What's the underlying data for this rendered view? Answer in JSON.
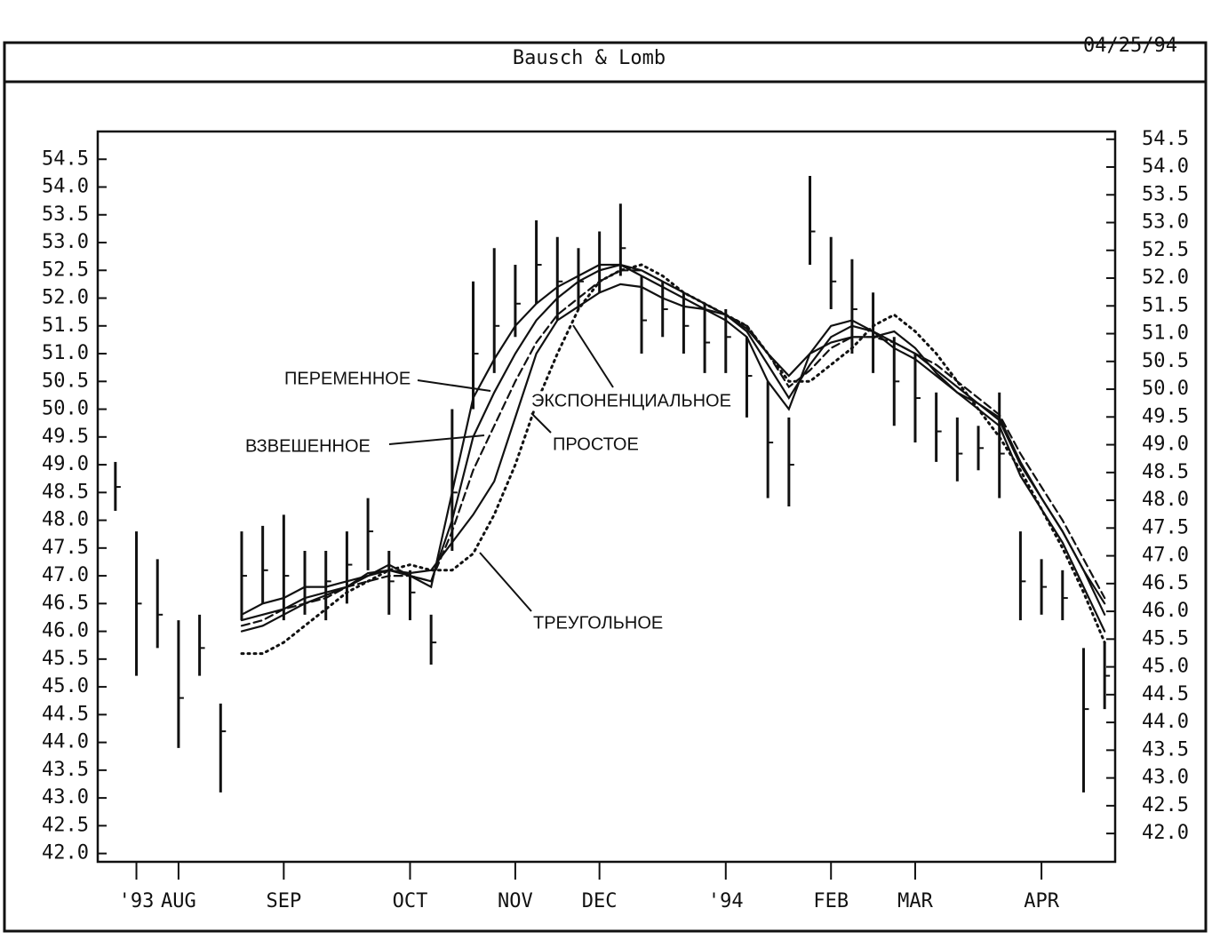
{
  "chart_data": {
    "type": "line",
    "title": "Bausch & Lomb",
    "date": "04/25/94",
    "categories": [
      null,
      "'93",
      null,
      "AUG",
      null,
      null,
      null,
      null,
      "SEP",
      null,
      null,
      null,
      null,
      null,
      "OCT",
      null,
      null,
      null,
      null,
      "NOV",
      null,
      null,
      null,
      "DEC",
      null,
      null,
      null,
      null,
      null,
      "'94",
      null,
      null,
      null,
      null,
      "FEB",
      null,
      null,
      null,
      "MAR",
      null,
      null,
      null,
      null,
      null,
      "APR",
      null,
      null,
      null
    ],
    "price_bars": {
      "high": [
        49.05,
        47.8,
        47.3,
        46.2,
        46.3,
        44.7,
        47.8,
        47.9,
        48.1,
        47.45,
        47.45,
        47.8,
        48.4,
        47.45,
        47.1,
        46.3,
        50.0,
        52.3,
        52.9,
        52.6,
        53.4,
        53.1,
        52.9,
        53.2,
        53.7,
        52.4,
        52.3,
        52.1,
        51.9,
        51.8,
        51.3,
        50.5,
        49.85,
        54.2,
        53.1,
        52.7,
        52.1,
        51.3,
        51.0,
        50.3,
        49.85,
        49.7,
        50.3,
        47.8,
        47.3,
        47.1,
        45.7,
        45.8
      ],
      "low": [
        48.17,
        45.2,
        45.7,
        43.9,
        45.2,
        43.1,
        46.2,
        46.5,
        46.2,
        46.3,
        46.2,
        46.5,
        47.1,
        46.3,
        46.2,
        45.4,
        47.45,
        50.0,
        50.65,
        51.3,
        51.9,
        51.6,
        51.8,
        52.1,
        52.4,
        51.0,
        51.3,
        51.0,
        50.65,
        50.65,
        49.85,
        48.4,
        48.25,
        52.6,
        51.8,
        51.0,
        50.65,
        49.7,
        49.4,
        49.05,
        48.7,
        48.9,
        48.4,
        46.2,
        46.3,
        46.2,
        43.1,
        44.6
      ],
      "close": [
        48.6,
        46.5,
        46.3,
        44.8,
        45.7,
        44.2,
        47.0,
        47.1,
        47.0,
        46.8,
        46.9,
        47.2,
        47.8,
        46.9,
        46.7,
        45.8,
        48.5,
        51.0,
        51.5,
        51.9,
        52.6,
        52.3,
        52.3,
        52.6,
        52.9,
        51.6,
        51.8,
        51.5,
        51.2,
        51.3,
        50.6,
        49.4,
        49.0,
        53.2,
        52.3,
        51.8,
        51.3,
        50.5,
        50.2,
        49.6,
        49.2,
        49.3,
        49.2,
        46.9,
        46.8,
        46.6,
        44.6,
        45.2
      ]
    },
    "series": [
      {
        "name": "ПЕРЕМЕННОЕ",
        "color": "#111111",
        "line_style": "solid",
        "values": [
          null,
          null,
          null,
          null,
          null,
          null,
          46.3,
          46.5,
          46.6,
          46.8,
          46.8,
          46.9,
          47.0,
          47.2,
          47.0,
          46.8,
          48.5,
          50.2,
          50.9,
          51.5,
          51.9,
          52.2,
          52.4,
          52.6,
          52.6,
          52.4,
          52.2,
          52.0,
          51.8,
          51.6,
          51.3,
          50.5,
          50.0,
          51.0,
          51.5,
          51.6,
          51.4,
          51.1,
          50.9,
          50.6,
          50.3,
          50.0,
          49.7,
          48.8,
          48.2,
          47.6,
          46.8,
          46.0
        ]
      },
      {
        "name": "ВЗВЕШЕННОЕ",
        "color": "#111111",
        "line_style": "solid",
        "values": [
          null,
          null,
          null,
          null,
          null,
          null,
          46.2,
          46.3,
          46.4,
          46.6,
          46.7,
          46.8,
          47.0,
          47.1,
          47.0,
          46.9,
          48.0,
          49.5,
          50.3,
          51.0,
          51.6,
          52.0,
          52.3,
          52.5,
          52.6,
          52.5,
          52.3,
          52.1,
          51.9,
          51.7,
          51.4,
          50.8,
          50.2,
          50.8,
          51.3,
          51.5,
          51.4,
          51.2,
          51.0,
          50.7,
          50.4,
          50.1,
          49.8,
          49.0,
          48.4,
          47.8,
          47.1,
          46.3
        ]
      },
      {
        "name": "ЭКСПОНЕНЦИАЛЬНОЕ",
        "color": "#111111",
        "line_style": "dashed",
        "values": [
          null,
          null,
          null,
          null,
          null,
          null,
          46.1,
          46.2,
          46.4,
          46.5,
          46.6,
          46.8,
          46.9,
          47.0,
          47.0,
          46.9,
          47.8,
          48.9,
          49.7,
          50.5,
          51.2,
          51.7,
          52.0,
          52.3,
          52.5,
          52.5,
          52.3,
          52.1,
          51.9,
          51.7,
          51.5,
          51.0,
          50.4,
          50.7,
          51.1,
          51.3,
          51.3,
          51.2,
          51.0,
          50.8,
          50.5,
          50.2,
          49.9,
          49.2,
          48.6,
          48.0,
          47.3,
          46.6
        ]
      },
      {
        "name": "ПРОСТОЕ",
        "color": "#111111",
        "line_style": "solid",
        "values": [
          null,
          null,
          null,
          null,
          null,
          null,
          46.0,
          46.1,
          46.3,
          46.5,
          46.65,
          46.8,
          47.05,
          47.1,
          47.05,
          47.1,
          47.6,
          48.1,
          48.7,
          49.85,
          51.0,
          51.6,
          51.85,
          52.1,
          52.25,
          52.2,
          52.0,
          51.85,
          51.8,
          51.7,
          51.45,
          51.0,
          50.6,
          51.0,
          51.2,
          51.3,
          51.3,
          51.4,
          51.1,
          50.65,
          50.3,
          50.1,
          49.85,
          49.05,
          48.4,
          47.8,
          47.1,
          46.5
        ]
      },
      {
        "name": "ТРЕУГОЛЬНОЕ",
        "color": "#111111",
        "line_style": "dotted",
        "values": [
          null,
          null,
          null,
          null,
          null,
          null,
          45.6,
          45.6,
          45.8,
          46.1,
          46.4,
          46.7,
          46.9,
          47.1,
          47.2,
          47.1,
          47.1,
          47.4,
          48.1,
          49.0,
          50.1,
          51.0,
          51.8,
          52.3,
          52.5,
          52.6,
          52.4,
          52.1,
          51.9,
          51.7,
          51.5,
          51.0,
          50.5,
          50.5,
          50.8,
          51.1,
          51.5,
          51.7,
          51.4,
          51.0,
          50.5,
          50.0,
          49.5,
          48.9,
          48.2,
          47.5,
          46.7,
          45.8
        ]
      }
    ],
    "ylim": [
      41.85,
      55.0
    ],
    "yticks": [
      {
        "value": 42,
        "label": "42.0"
      },
      {
        "value": 42.5,
        "label": "42.5"
      },
      {
        "value": 43,
        "label": "43.0"
      },
      {
        "value": 43.5,
        "label": "43.5"
      },
      {
        "value": 44,
        "label": "44.0"
      },
      {
        "value": 44.5,
        "label": "44.5"
      },
      {
        "value": 45,
        "label": "45.0"
      },
      {
        "value": 45.5,
        "label": "45.5"
      },
      {
        "value": 46,
        "label": "46.0"
      },
      {
        "value": 46.5,
        "label": "46.5"
      },
      {
        "value": 47,
        "label": "47.0"
      },
      {
        "value": 47.5,
        "label": "47.5"
      },
      {
        "value": 48,
        "label": "48.0"
      },
      {
        "value": 48.5,
        "label": "48.5"
      },
      {
        "value": 49,
        "label": "49.0"
      },
      {
        "value": 49.5,
        "label": "49.5"
      },
      {
        "value": 50,
        "label": "50.0"
      },
      {
        "value": 50.5,
        "label": "50.5"
      },
      {
        "value": 51,
        "label": "51.0"
      },
      {
        "value": 51.5,
        "label": "51.5"
      },
      {
        "value": 52,
        "label": "52.0"
      },
      {
        "value": 52.5,
        "label": "52.5"
      },
      {
        "value": 53,
        "label": "53.0"
      },
      {
        "value": 53.5,
        "label": "53.5"
      },
      {
        "value": 54,
        "label": "54.0"
      },
      {
        "value": 54.5,
        "label": "54.5"
      }
    ],
    "y2lim": [
      41.49,
      54.64
    ],
    "y2ticks": [
      {
        "value": 42,
        "label": "42.0"
      },
      {
        "value": 42.5,
        "label": "42.5"
      },
      {
        "value": 43,
        "label": "43.0"
      },
      {
        "value": 43.5,
        "label": "43.5"
      },
      {
        "value": 44,
        "label": "44.0"
      },
      {
        "value": 44.5,
        "label": "44.5"
      },
      {
        "value": 45,
        "label": "45.0"
      },
      {
        "value": 45.5,
        "label": "45.5"
      },
      {
        "value": 46,
        "label": "46.0"
      },
      {
        "value": 46.5,
        "label": "46.5"
      },
      {
        "value": 47,
        "label": "47.0"
      },
      {
        "value": 47.5,
        "label": "47.5"
      },
      {
        "value": 48,
        "label": "48.0"
      },
      {
        "value": 48.5,
        "label": "48.5"
      },
      {
        "value": 49,
        "label": "49.0"
      },
      {
        "value": 49.5,
        "label": "49.5"
      },
      {
        "value": 50,
        "label": "50.0"
      },
      {
        "value": 50.5,
        "label": "50.5"
      },
      {
        "value": 51,
        "label": "51.0"
      },
      {
        "value": 51.5,
        "label": "51.5"
      },
      {
        "value": 52,
        "label": "52.0"
      },
      {
        "value": 52.5,
        "label": "52.5"
      },
      {
        "value": 53,
        "label": "53.0"
      },
      {
        "value": 53.5,
        "label": "53.5"
      },
      {
        "value": 54,
        "label": "54.0"
      },
      {
        "value": 54.5,
        "label": "54.5"
      }
    ],
    "grid": false
  }
}
